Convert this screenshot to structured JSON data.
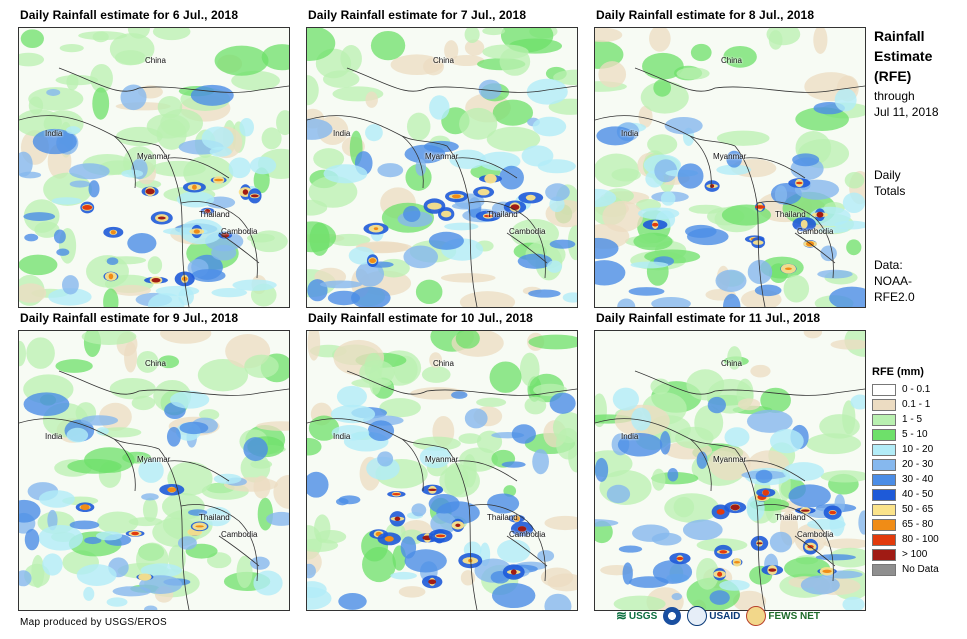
{
  "panels": [
    {
      "title": "Daily Rainfall estimate for 6 Jul., 2018",
      "labels": {
        "china": "China",
        "india": "India",
        "myanmar": "Myanmar",
        "thailand": "Thailand",
        "cambodia": "Cambodia"
      },
      "heavy_rain": "high"
    },
    {
      "title": "Daily Rainfall estimate for 7 Jul., 2018",
      "labels": {
        "china": "China",
        "india": "India",
        "myanmar": "Myanmar",
        "thailand": "Thailand",
        "cambodia": "Cambodia"
      },
      "heavy_rain": "moderate"
    },
    {
      "title": "Daily Rainfall estimate for 8 Jul., 2018",
      "labels": {
        "china": "China",
        "india": "India",
        "myanmar": "Myanmar",
        "thailand": "Thailand",
        "cambodia": "Cambodia"
      },
      "heavy_rain": "moderate"
    },
    {
      "title": "Daily Rainfall estimate for 9 Jul., 2018",
      "labels": {
        "china": "China",
        "india": "India",
        "myanmar": "Myanmar",
        "thailand": "Thailand",
        "cambodia": "Cambodia"
      },
      "heavy_rain": "low"
    },
    {
      "title": "Daily Rainfall estimate for 10 Jul., 2018",
      "labels": {
        "china": "China",
        "india": "India",
        "myanmar": "Myanmar",
        "thailand": "Thailand",
        "cambodia": "Cambodia"
      },
      "heavy_rain": "high"
    },
    {
      "title": "Daily Rainfall estimate for 11 Jul., 2018",
      "labels": {
        "china": "China",
        "india": "India",
        "myanmar": "Myanmar",
        "thailand": "Thailand",
        "cambodia": "Cambodia"
      },
      "heavy_rain": "high"
    }
  ],
  "sidebar": {
    "title_line1": "Rainfall",
    "title_line2": "Estimate",
    "title_line3": "(RFE)",
    "through": "through",
    "through_date": "Jul 11, 2018",
    "totals_line1": "Daily",
    "totals_line2": "Totals",
    "data_line1": "Data:",
    "data_line2": "NOAA-",
    "data_line3": "RFE2.0"
  },
  "legend": {
    "title": "RFE (mm)",
    "items": [
      {
        "label": "0 - 0.1",
        "color": "#ffffff"
      },
      {
        "label": "0.1 - 1",
        "color": "#ecdcc2"
      },
      {
        "label": "1 - 5",
        "color": "#b9f0b0"
      },
      {
        "label": "5 - 10",
        "color": "#6ee06a"
      },
      {
        "label": "10 - 20",
        "color": "#b2ecf7"
      },
      {
        "label": "20 - 30",
        "color": "#86b8ee"
      },
      {
        "label": "30 - 40",
        "color": "#4b8de6"
      },
      {
        "label": "40 - 50",
        "color": "#1e5ad8"
      },
      {
        "label": "50 - 65",
        "color": "#fbe38a"
      },
      {
        "label": "65 - 80",
        "color": "#f08c16"
      },
      {
        "label": "80 - 100",
        "color": "#e23a0c"
      },
      {
        "label": "> 100",
        "color": "#a01b14"
      },
      {
        "label": "No Data",
        "color": "#8f8f8f"
      }
    ]
  },
  "credit": "Map produced by USGS/EROS",
  "logos": {
    "usgs": "USGS",
    "noaa": "NOAA",
    "usaid": "USAID",
    "fewsnet": "FEWS NET"
  }
}
